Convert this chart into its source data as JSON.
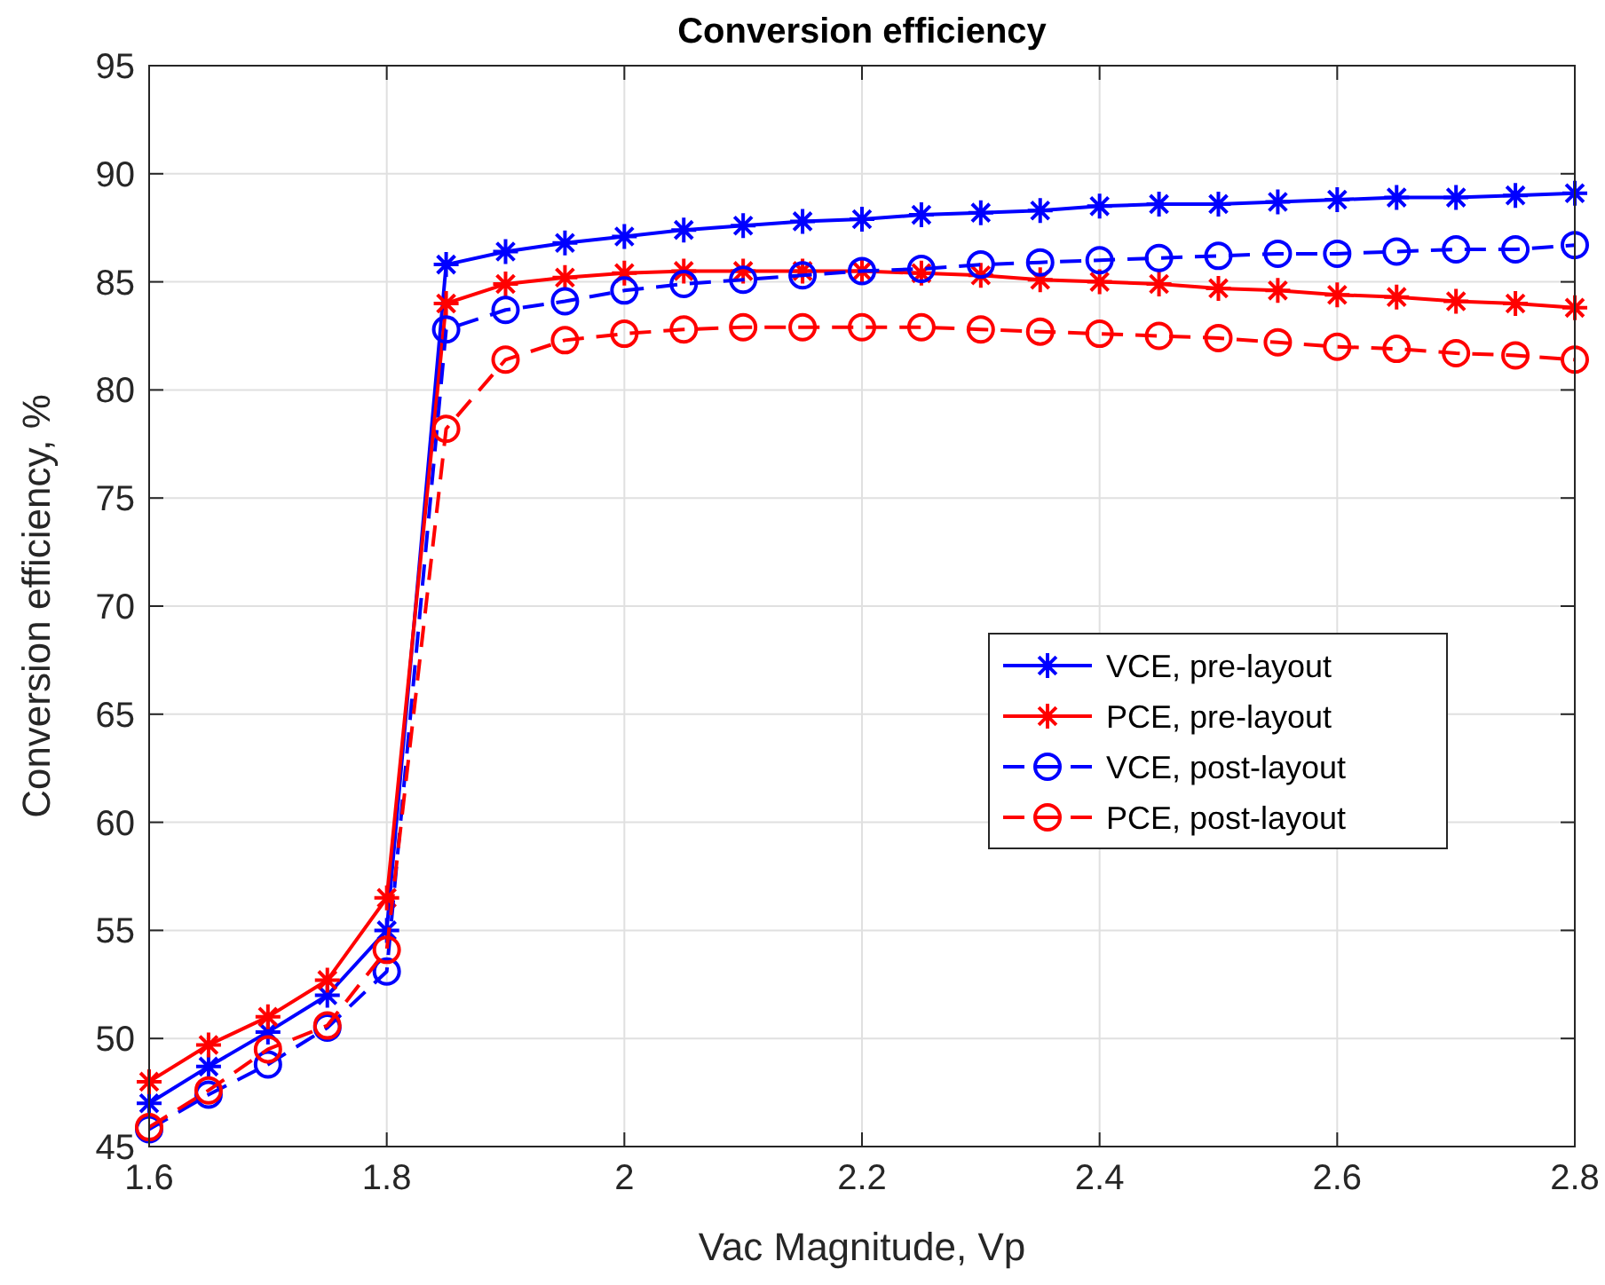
{
  "chart_data": {
    "type": "line",
    "title": "Conversion efficiency",
    "xlabel": "Vac Magnitude, Vp",
    "ylabel": "Conversion efficiency, %",
    "x": [
      1.6,
      1.65,
      1.7,
      1.75,
      1.8,
      1.85,
      1.9,
      1.95,
      2,
      2.05,
      2.1,
      2.15,
      2.2,
      2.25,
      2.3,
      2.35,
      2.4,
      2.45,
      2.5,
      2.55,
      2.6,
      2.65,
      2.7,
      2.75,
      2.8
    ],
    "series": [
      {
        "name": "VCE, pre-layout",
        "color": "#0000ff",
        "marker": "cross",
        "line_style": "solid",
        "values": [
          47.0,
          48.7,
          50.3,
          52.0,
          55.0,
          85.8,
          86.4,
          86.8,
          87.1,
          87.4,
          87.6,
          87.8,
          87.9,
          88.1,
          88.2,
          88.3,
          88.5,
          88.6,
          88.6,
          88.7,
          88.8,
          88.9,
          88.9,
          89.0,
          89.1
        ]
      },
      {
        "name": "PCE, pre-layout",
        "color": "#ff0000",
        "marker": "cross",
        "line_style": "solid",
        "values": [
          48.0,
          49.7,
          51.0,
          52.7,
          56.5,
          84.0,
          84.9,
          85.2,
          85.4,
          85.5,
          85.5,
          85.5,
          85.5,
          85.4,
          85.3,
          85.1,
          85.0,
          84.9,
          84.7,
          84.6,
          84.4,
          84.3,
          84.1,
          84.0,
          83.8
        ]
      },
      {
        "name": "VCE, post-layout",
        "color": "#0000ff",
        "marker": "circle",
        "line_style": "dashed",
        "values": [
          45.8,
          47.4,
          48.8,
          50.5,
          53.1,
          82.8,
          83.7,
          84.1,
          84.6,
          84.9,
          85.1,
          85.3,
          85.5,
          85.6,
          85.8,
          85.9,
          86.0,
          86.1,
          86.2,
          86.3,
          86.3,
          86.4,
          86.5,
          86.5,
          86.7
        ]
      },
      {
        "name": "PCE, post-layout",
        "color": "#ff0000",
        "marker": "circle",
        "line_style": "dashed",
        "values": [
          45.9,
          47.6,
          49.5,
          50.6,
          54.1,
          78.2,
          81.4,
          82.3,
          82.6,
          82.8,
          82.9,
          82.9,
          82.9,
          82.9,
          82.8,
          82.7,
          82.6,
          82.5,
          82.4,
          82.2,
          82.0,
          81.9,
          81.7,
          81.6,
          81.4
        ]
      }
    ],
    "xlim": [
      1.6,
      2.8
    ],
    "xticks": [
      1.6,
      1.8,
      2,
      2.2,
      2.4,
      2.6,
      2.8
    ],
    "ylim": [
      45,
      95
    ],
    "yticks": [
      45,
      50,
      55,
      60,
      65,
      70,
      75,
      80,
      85,
      90,
      95
    ],
    "grid": true,
    "legend": "right"
  }
}
